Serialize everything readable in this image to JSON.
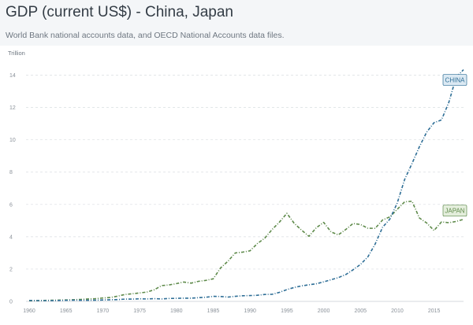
{
  "header": {
    "title": "GDP (current US$) - China, Japan",
    "subtitle": "World Bank national accounts data, and OECD National Accounts data files."
  },
  "chart_data": {
    "type": "line",
    "title": "GDP (current US$) - China, Japan",
    "ylabel": "Trillion",
    "xlabel": "",
    "xlim": [
      1960,
      2019
    ],
    "ylim": [
      0,
      15
    ],
    "x_ticks": [
      1960,
      1965,
      1970,
      1975,
      1980,
      1985,
      1990,
      1995,
      2000,
      2005,
      2010,
      2015
    ],
    "y_ticks": [
      0,
      2,
      4,
      6,
      8,
      10,
      12,
      14
    ],
    "grid": "horizontal dashed",
    "x": [
      1960,
      1961,
      1962,
      1963,
      1964,
      1965,
      1966,
      1967,
      1968,
      1969,
      1970,
      1971,
      1972,
      1973,
      1974,
      1975,
      1976,
      1977,
      1978,
      1979,
      1980,
      1981,
      1982,
      1983,
      1984,
      1985,
      1986,
      1987,
      1988,
      1989,
      1990,
      1991,
      1992,
      1993,
      1994,
      1995,
      1996,
      1997,
      1998,
      1999,
      2000,
      2001,
      2002,
      2003,
      2004,
      2005,
      2006,
      2007,
      2008,
      2009,
      2010,
      2011,
      2012,
      2013,
      2014,
      2015,
      2016,
      2017,
      2018,
      2019
    ],
    "series": [
      {
        "name": "CHINA",
        "label": "CHINA",
        "color": "#2e6e96",
        "values": [
          0.06,
          0.05,
          0.05,
          0.05,
          0.06,
          0.07,
          0.08,
          0.07,
          0.07,
          0.08,
          0.09,
          0.1,
          0.11,
          0.14,
          0.14,
          0.16,
          0.15,
          0.17,
          0.15,
          0.18,
          0.19,
          0.2,
          0.2,
          0.23,
          0.26,
          0.31,
          0.3,
          0.27,
          0.31,
          0.35,
          0.36,
          0.38,
          0.43,
          0.44,
          0.56,
          0.73,
          0.86,
          0.96,
          1.03,
          1.09,
          1.21,
          1.34,
          1.47,
          1.66,
          1.96,
          2.29,
          2.75,
          3.55,
          4.59,
          5.1,
          6.09,
          7.55,
          8.53,
          9.57,
          10.48,
          11.06,
          11.23,
          12.31,
          13.89,
          14.34
        ]
      },
      {
        "name": "JAPAN",
        "label": "JAPAN",
        "color": "#5e8a4a",
        "values": [
          0.04,
          0.05,
          0.06,
          0.07,
          0.08,
          0.09,
          0.1,
          0.12,
          0.15,
          0.17,
          0.21,
          0.24,
          0.32,
          0.43,
          0.47,
          0.52,
          0.58,
          0.72,
          0.98,
          1.02,
          1.1,
          1.2,
          1.13,
          1.24,
          1.3,
          1.4,
          2.07,
          2.49,
          3.0,
          3.05,
          3.13,
          3.58,
          3.91,
          4.45,
          4.91,
          5.45,
          4.83,
          4.41,
          4.03,
          4.56,
          4.89,
          4.3,
          4.12,
          4.45,
          4.82,
          4.76,
          4.53,
          4.52,
          5.04,
          5.23,
          5.7,
          6.16,
          6.2,
          5.16,
          4.85,
          4.39,
          4.92,
          4.87,
          4.95,
          5.08
        ]
      }
    ]
  }
}
